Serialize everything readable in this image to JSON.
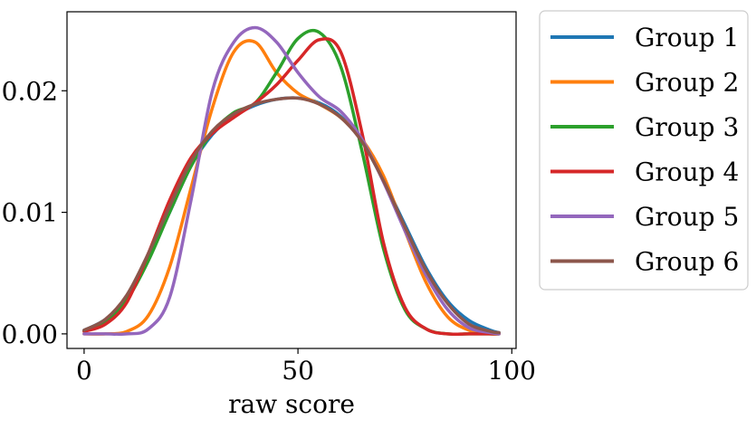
{
  "chart_data": {
    "type": "line",
    "title": "",
    "xlabel": "raw score",
    "ylabel": "",
    "xlim": [
      -4,
      101
    ],
    "ylim": [
      -0.0012,
      0.0265
    ],
    "xticks": [
      0,
      50,
      100
    ],
    "xtick_labels": [
      "0",
      "50",
      "100"
    ],
    "yticks": [
      0.0,
      0.01,
      0.02
    ],
    "ytick_labels": [
      "0.00",
      "0.01",
      "0.02"
    ],
    "grid": false,
    "legend_position": "outside-right-top",
    "x": [
      0,
      5,
      10,
      15,
      20,
      25,
      30,
      35,
      40,
      45,
      50,
      55,
      60,
      65,
      70,
      75,
      80,
      85,
      90,
      95,
      97
    ],
    "series": [
      {
        "name": "Group 1",
        "color": "#1f77b4",
        "values": [
          0.0003,
          0.0012,
          0.003,
          0.0062,
          0.01,
          0.0138,
          0.0164,
          0.0179,
          0.0188,
          0.0193,
          0.0194,
          0.019,
          0.0179,
          0.0158,
          0.0126,
          0.009,
          0.0054,
          0.0027,
          0.0011,
          0.0003,
          0.0001
        ]
      },
      {
        "name": "Group 2",
        "color": "#ff7f0e",
        "values": [
          0.0,
          0.0,
          0.0002,
          0.0015,
          0.0055,
          0.012,
          0.0186,
          0.0232,
          0.024,
          0.0215,
          0.0198,
          0.0189,
          0.0178,
          0.016,
          0.013,
          0.0085,
          0.0042,
          0.0014,
          0.0003,
          0.0,
          0.0
        ]
      },
      {
        "name": "Group 3",
        "color": "#2ca02c",
        "values": [
          0.0002,
          0.001,
          0.0028,
          0.006,
          0.01,
          0.0138,
          0.0166,
          0.0182,
          0.019,
          0.0215,
          0.0243,
          0.0248,
          0.022,
          0.015,
          0.007,
          0.002,
          0.0004,
          0.0,
          0.0,
          0.0,
          0.0
        ]
      },
      {
        "name": "Group 4",
        "color": "#d62728",
        "values": [
          0.0002,
          0.0008,
          0.0026,
          0.0066,
          0.011,
          0.0145,
          0.0165,
          0.0178,
          0.019,
          0.0205,
          0.0225,
          0.0242,
          0.0232,
          0.0165,
          0.0075,
          0.0022,
          0.0004,
          0.0,
          0.0,
          0.0,
          0.0
        ]
      },
      {
        "name": "Group 5",
        "color": "#9467bd",
        "values": [
          0.0,
          0.0,
          0.0,
          0.0004,
          0.003,
          0.011,
          0.02,
          0.024,
          0.0252,
          0.024,
          0.0215,
          0.0195,
          0.0183,
          0.016,
          0.0125,
          0.0085,
          0.0048,
          0.002,
          0.0005,
          0.0001,
          0.0
        ]
      },
      {
        "name": "Group 6",
        "color": "#8c564b",
        "values": [
          0.0003,
          0.0012,
          0.0032,
          0.0066,
          0.0105,
          0.0142,
          0.0167,
          0.0181,
          0.0189,
          0.0193,
          0.0194,
          0.0189,
          0.0178,
          0.0158,
          0.0126,
          0.0088,
          0.0052,
          0.0025,
          0.0008,
          0.0002,
          0.0001
        ]
      }
    ]
  }
}
